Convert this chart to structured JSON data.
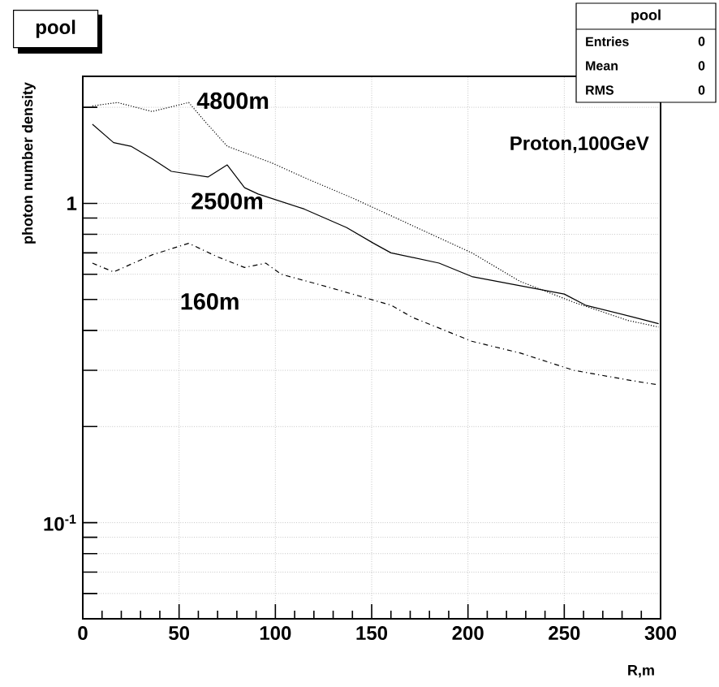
{
  "chart_data": {
    "type": "line",
    "title": "pool",
    "xlabel": "R,m",
    "ylabel": "photon number density",
    "log": "y",
    "grid": true,
    "marker": "none",
    "xlim": [
      0,
      300
    ],
    "xticks": [
      0,
      50,
      100,
      150,
      200,
      250,
      300
    ],
    "ylim": [
      0.05,
      2.5
    ],
    "yticks": [
      {
        "value": 0.06,
        "label": null
      },
      {
        "value": 0.07,
        "label": null
      },
      {
        "value": 0.08,
        "label": null
      },
      {
        "value": 0.09,
        "label": null
      },
      {
        "value": 0.1,
        "label": "10$^{-1}$"
      },
      {
        "value": 0.2,
        "label": null
      },
      {
        "value": 0.3,
        "label": null
      },
      {
        "value": 0.4,
        "label": null
      },
      {
        "value": 0.5,
        "label": null
      },
      {
        "value": 0.6,
        "label": null
      },
      {
        "value": 0.7,
        "label": null
      },
      {
        "value": 0.8,
        "label": null
      },
      {
        "value": 0.9,
        "label": null
      },
      {
        "value": 1,
        "label": "1"
      },
      {
        "value": 2,
        "label": null
      }
    ],
    "series": [
      {
        "name": "4800m",
        "color": "#000000",
        "line_style": "dotted",
        "x": [
          5,
          18,
          36,
          55,
          64,
          75,
          98,
          117,
          140,
          185,
          202,
          227,
          255,
          283,
          299
        ],
        "values": [
          2.02,
          2.07,
          1.94,
          2.07,
          1.79,
          1.51,
          1.34,
          1.19,
          1.04,
          0.78,
          0.7,
          0.57,
          0.49,
          0.43,
          0.41
        ]
      },
      {
        "name": "2500m",
        "color": "#000000",
        "line_style": "solid",
        "x": [
          5,
          16,
          25,
          36,
          46,
          65,
          75,
          84,
          91,
          115,
          137,
          151,
          160,
          185,
          202,
          250,
          261,
          286,
          299
        ],
        "values": [
          1.77,
          1.55,
          1.51,
          1.38,
          1.26,
          1.21,
          1.32,
          1.12,
          1.07,
          0.96,
          0.84,
          0.75,
          0.7,
          0.65,
          0.59,
          0.52,
          0.48,
          0.44,
          0.42
        ]
      },
      {
        "name": "160m",
        "color": "#000000",
        "line_style": "dashdot",
        "x": [
          5,
          16,
          36,
          55,
          70,
          84,
          95,
          103,
          126,
          160,
          171,
          202,
          227,
          255,
          283,
          299
        ],
        "values": [
          0.65,
          0.61,
          0.69,
          0.75,
          0.68,
          0.63,
          0.65,
          0.6,
          0.55,
          0.48,
          0.44,
          0.37,
          0.34,
          0.3,
          0.28,
          0.27
        ]
      }
    ],
    "annotations": [
      "Proton,100GeV",
      "pool",
      "Entries",
      "0",
      "Mean",
      "0",
      "RMS",
      "0"
    ]
  }
}
